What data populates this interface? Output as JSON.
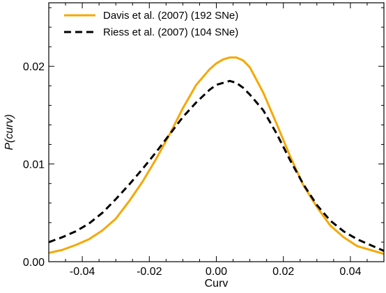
{
  "chart_data": {
    "type": "line",
    "title": "",
    "xlabel": "Curv",
    "ylabel": "P(curv)",
    "xlim": [
      -0.05,
      0.05
    ],
    "ylim": [
      0.0,
      0.0265
    ],
    "grid": false,
    "legend_position": "top-left",
    "x_ticks": [
      -0.04,
      -0.02,
      0.0,
      0.02,
      0.04
    ],
    "x_tick_labels": [
      "-0.04",
      "-0.02",
      "0.00",
      "0.02",
      "0.04"
    ],
    "y_ticks": [
      0.0,
      0.01,
      0.02
    ],
    "y_tick_labels": [
      "0.00",
      "0.01",
      "0.02"
    ],
    "series": [
      {
        "name": "Davis et al. (2007) (192 SNe)",
        "color": "#f5a800",
        "line_style": "solid",
        "x": [
          -0.05,
          -0.046,
          -0.042,
          -0.038,
          -0.034,
          -0.03,
          -0.026,
          -0.022,
          -0.018,
          -0.014,
          -0.01,
          -0.006,
          -0.002,
          0.0,
          0.002,
          0.004,
          0.006,
          0.008,
          0.01,
          0.014,
          0.018,
          0.022,
          0.026,
          0.03,
          0.034,
          0.038,
          0.042,
          0.046,
          0.05
        ],
        "y": [
          0.0009,
          0.0012,
          0.0017,
          0.0023,
          0.0032,
          0.0044,
          0.0062,
          0.0082,
          0.0105,
          0.013,
          0.0157,
          0.0181,
          0.0197,
          0.0203,
          0.0207,
          0.0209,
          0.0209,
          0.0206,
          0.0199,
          0.0173,
          0.0141,
          0.0108,
          0.0078,
          0.0056,
          0.0037,
          0.0025,
          0.0016,
          0.0012,
          0.0008
        ]
      },
      {
        "name": "Riess et al. (2007) (104 SNe)",
        "color": "#000000",
        "line_style": "dashed",
        "x": [
          -0.05,
          -0.046,
          -0.042,
          -0.038,
          -0.034,
          -0.03,
          -0.026,
          -0.022,
          -0.018,
          -0.014,
          -0.01,
          -0.006,
          -0.002,
          0.0,
          0.002,
          0.004,
          0.006,
          0.008,
          0.01,
          0.014,
          0.018,
          0.022,
          0.026,
          0.03,
          0.034,
          0.038,
          0.042,
          0.046,
          0.05
        ],
        "y": [
          0.002,
          0.0025,
          0.0031,
          0.0039,
          0.005,
          0.0064,
          0.0079,
          0.0095,
          0.0112,
          0.013,
          0.0148,
          0.0163,
          0.0176,
          0.0181,
          0.0183,
          0.0185,
          0.0183,
          0.0178,
          0.0171,
          0.0155,
          0.0131,
          0.0104,
          0.0079,
          0.0058,
          0.0042,
          0.0031,
          0.0023,
          0.0017,
          0.0011
        ]
      }
    ]
  }
}
